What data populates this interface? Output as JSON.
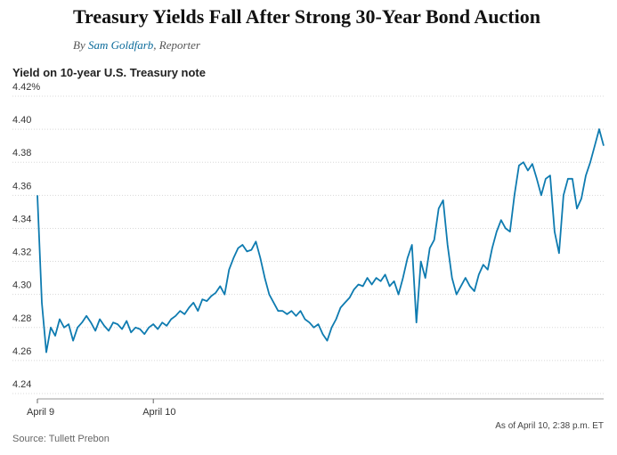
{
  "header": {
    "title": "Treasury Yields Fall After Strong 30-Year Bond Auction",
    "by": "By",
    "author": "Sam Goldfarb",
    "role": ", Reporter"
  },
  "chart_data": {
    "type": "line",
    "title": "Yield on 10-year U.S. Treasury note",
    "note": "As of April 10, 2:38 p.m. ET",
    "source": "Source: Tullett Prebon",
    "color": "#0e7bb0",
    "grid": true,
    "ylim": [
      4.24,
      4.42
    ],
    "yticks": [
      4.24,
      4.26,
      4.28,
      {
        "value": 4.3,
        "label": "4.30"
      },
      4.32,
      4.34,
      4.36,
      4.38,
      {
        "value": 4.4,
        "label": "4.40"
      },
      {
        "value": 4.42,
        "label": "4.42%"
      }
    ],
    "categories": [
      "April 9",
      null,
      null,
      null,
      null,
      null,
      null,
      null,
      null,
      null,
      null,
      null,
      null,
      null,
      null,
      null,
      null,
      null,
      null,
      null,
      null,
      null,
      null,
      null,
      null,
      null,
      "April 10",
      null,
      null,
      null,
      null,
      null,
      null,
      null,
      null,
      null,
      null,
      null,
      null,
      null,
      null,
      null,
      null,
      null,
      null,
      null,
      null,
      null,
      null,
      null,
      null,
      null,
      null,
      null,
      null,
      null,
      null,
      null,
      null,
      null,
      null,
      null,
      null,
      null,
      null,
      null,
      null,
      null,
      null,
      null,
      null,
      null,
      null,
      null,
      null,
      null,
      null,
      null,
      null,
      null,
      null,
      null,
      null,
      null,
      null,
      null,
      null,
      null,
      null,
      null,
      null,
      null,
      null,
      null,
      null,
      null,
      null,
      null,
      null,
      null,
      null,
      null,
      null,
      null,
      null,
      null,
      null,
      null,
      null,
      null,
      null,
      null,
      null,
      null,
      null,
      null,
      null,
      null,
      null,
      null,
      null,
      null,
      null,
      null,
      null,
      null,
      null,
      null
    ],
    "values": [
      4.36,
      4.295,
      4.265,
      4.28,
      4.275,
      4.285,
      4.28,
      4.282,
      4.272,
      4.28,
      4.283,
      4.287,
      4.283,
      4.278,
      4.285,
      4.281,
      4.278,
      4.283,
      4.282,
      4.279,
      4.284,
      4.277,
      4.28,
      4.279,
      4.276,
      4.28,
      4.282,
      4.279,
      4.283,
      4.281,
      4.285,
      4.287,
      4.29,
      4.288,
      4.292,
      4.295,
      4.29,
      4.297,
      4.296,
      4.299,
      4.301,
      4.305,
      4.3,
      4.315,
      4.322,
      4.328,
      4.33,
      4.326,
      4.327,
      4.332,
      4.322,
      4.31,
      4.3,
      4.295,
      4.29,
      4.29,
      4.288,
      4.29,
      4.287,
      4.29,
      4.285,
      4.283,
      4.28,
      4.282,
      4.276,
      4.272,
      4.28,
      4.285,
      4.292,
      4.295,
      4.298,
      4.303,
      4.306,
      4.305,
      4.31,
      4.306,
      4.31,
      4.308,
      4.312,
      4.305,
      4.308,
      4.3,
      4.31,
      4.322,
      4.33,
      4.283,
      4.32,
      4.31,
      4.328,
      4.333,
      4.352,
      4.357,
      4.33,
      4.31,
      4.3,
      4.305,
      4.31,
      4.305,
      4.302,
      4.312,
      4.318,
      4.315,
      4.328,
      4.338,
      4.345,
      4.34,
      4.338,
      4.36,
      4.378,
      4.38,
      4.375,
      4.379,
      4.37,
      4.36,
      4.37,
      4.372,
      4.338,
      4.325,
      4.36,
      4.37,
      4.37,
      4.352,
      4.358,
      4.372,
      4.38,
      4.39,
      4.4,
      4.39
    ]
  }
}
